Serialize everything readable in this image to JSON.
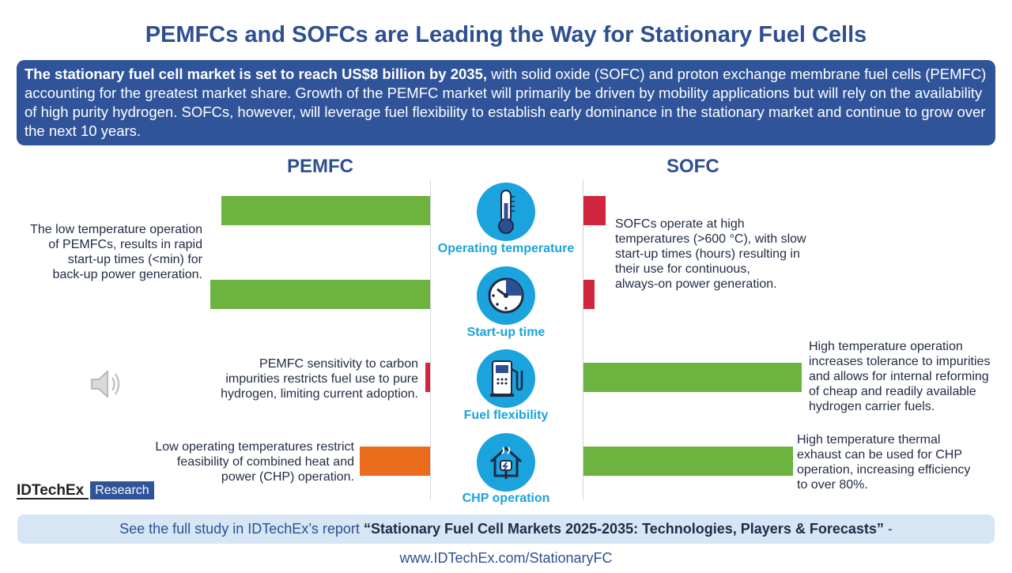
{
  "title": "PEMFCs and SOFCs are Leading the Way for Stationary Fuel Cells",
  "intro": {
    "bold": "The stationary fuel cell market is set to reach US$8 billion by 2035,",
    "text": " with solid oxide (SOFC) and proton exchange membrane fuel cells (PEMFC) accounting for the greatest market share. Growth of the PEMFC market will primarily be driven by mobility applications but will rely on the availability of high purity hydrogen. SOFCs, however, will leverage fuel flexibility to establish early dominance in the stationary market and continue to grow over the next 10 years."
  },
  "headers": {
    "left": "PEMFC",
    "right": "SOFC"
  },
  "chart_data": {
    "type": "bar",
    "categories": [
      "Operating temperature",
      "Start-up time",
      "Fuel flexibility",
      "CHP operation"
    ],
    "series": [
      {
        "name": "PEMFC",
        "values": [
          0.95,
          1.0,
          0.02,
          0.32
        ],
        "colors": [
          "#6cb33f",
          "#6cb33f",
          "#d0263e",
          "#e96b1b"
        ]
      },
      {
        "name": "SOFC",
        "values": [
          0.1,
          0.05,
          1.0,
          0.96
        ],
        "colors": [
          "#d0263e",
          "#d0263e",
          "#6cb33f",
          "#6cb33f"
        ]
      }
    ]
  },
  "notes": {
    "pemfc_temp": [
      "The low temperature operation",
      "of PEMFCs, results in rapid",
      "start-up times (<min) for",
      "back-up power generation."
    ],
    "sofc_temp": [
      "SOFCs operate at high",
      "temperatures (>600 °C), with slow",
      "start-up times (hours) resulting in",
      "their use for continuous,",
      "always-on power generation."
    ],
    "pemfc_fuel": [
      "PEMFC sensitivity to carbon",
      "impurities restricts fuel use to pure",
      "hydrogen, limiting current adoption."
    ],
    "sofc_fuel": [
      "High temperature operation",
      "increases tolerance to impurities",
      "and allows for internal reforming",
      "of cheap and readily available",
      "hydrogen carrier fuels."
    ],
    "pemfc_chp": [
      "Low operating temperatures restrict",
      "feasibility of combined heat and",
      "power (CHP) operation."
    ],
    "sofc_chp": [
      "High temperature thermal",
      "exhaust can be used for CHP",
      "operation, increasing efficiency",
      "to over 80%."
    ]
  },
  "logo": {
    "brand": "IDTechEx",
    "tag": "Research"
  },
  "footer": {
    "prefix": "See the full study in IDTechEx’s report ",
    "report": "“Stationary Fuel Cell Markets 2025-2035: Technologies, Players & Forecasts”",
    "suffix": " - www.IDTechEx.com/StationaryFC"
  },
  "icons": [
    "thermometer-icon",
    "stopwatch-icon",
    "fuel-pump-icon",
    "house-plug-icon",
    "speaker-icon"
  ],
  "colors": {
    "accent": "#1aa3dd",
    "title": "#2e4f92",
    "banner": "#30549a",
    "green": "#6cb33f",
    "red": "#d0263e",
    "orange": "#e96b1b"
  }
}
